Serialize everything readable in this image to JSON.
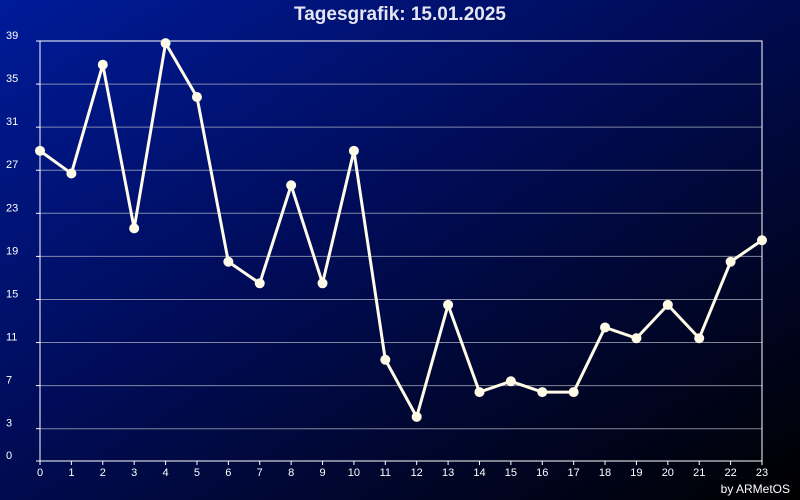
{
  "chart_data": {
    "type": "line",
    "title": "Tagesgrafik: 15.01.2025",
    "credit": "by ARMetOS",
    "xlabel": "",
    "ylabel": "",
    "x": [
      0,
      1,
      2,
      3,
      4,
      5,
      6,
      7,
      8,
      9,
      10,
      11,
      12,
      13,
      14,
      15,
      16,
      17,
      18,
      19,
      20,
      21,
      22,
      23
    ],
    "series": [
      {
        "values": [
          28.8,
          26.7,
          36.8,
          21.6,
          38.8,
          33.8,
          18.5,
          16.5,
          25.6,
          16.5,
          28.8,
          9.4,
          4.1,
          14.5,
          6.4,
          7.4,
          6.4,
          6.4,
          12.4,
          11.4,
          14.5,
          11.4,
          18.5,
          20.5
        ]
      }
    ],
    "ylim": [
      0,
      39
    ],
    "yticks": [
      0,
      3,
      7,
      11,
      15,
      19,
      23,
      27,
      31,
      35,
      39
    ],
    "xlim": [
      0,
      23
    ],
    "grid": true,
    "colors": {
      "line": "#fffbe6",
      "marker": "#fffbe6",
      "grid": "#b8bcc8",
      "axis": "#ffffff",
      "tick_text": "#ffffff",
      "title_text": "#e6e6f2"
    }
  }
}
